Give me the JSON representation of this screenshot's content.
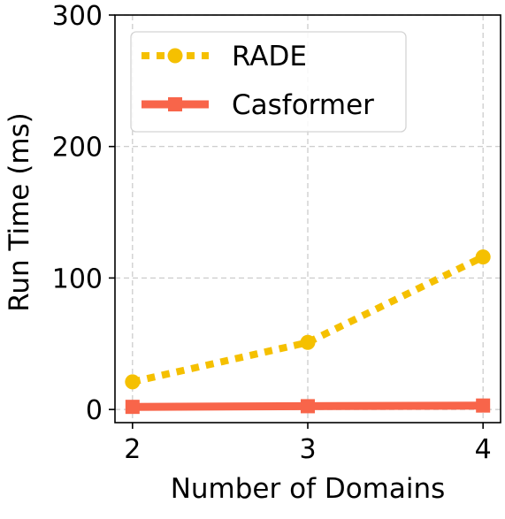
{
  "chart_data": {
    "type": "line",
    "title": "",
    "xlabel": "Number of Domains",
    "ylabel": "Run Time (ms)",
    "x": [
      2,
      3,
      4
    ],
    "x_ticks": [
      "2",
      "3",
      "4"
    ],
    "y_ticks": [
      "0",
      "100",
      "200",
      "300"
    ],
    "xlim": [
      1.9,
      4.1
    ],
    "ylim": [
      -10,
      300
    ],
    "grid": true,
    "legend_position": "top-left",
    "series": [
      {
        "name": "RADE",
        "values": [
          21,
          51,
          116
        ],
        "color": "#F5C000",
        "line_style": "dotted",
        "marker": "circle"
      },
      {
        "name": "Casformer",
        "values": [
          2,
          2.5,
          3
        ],
        "color": "#F8654A",
        "line_style": "solid",
        "marker": "square"
      }
    ]
  }
}
